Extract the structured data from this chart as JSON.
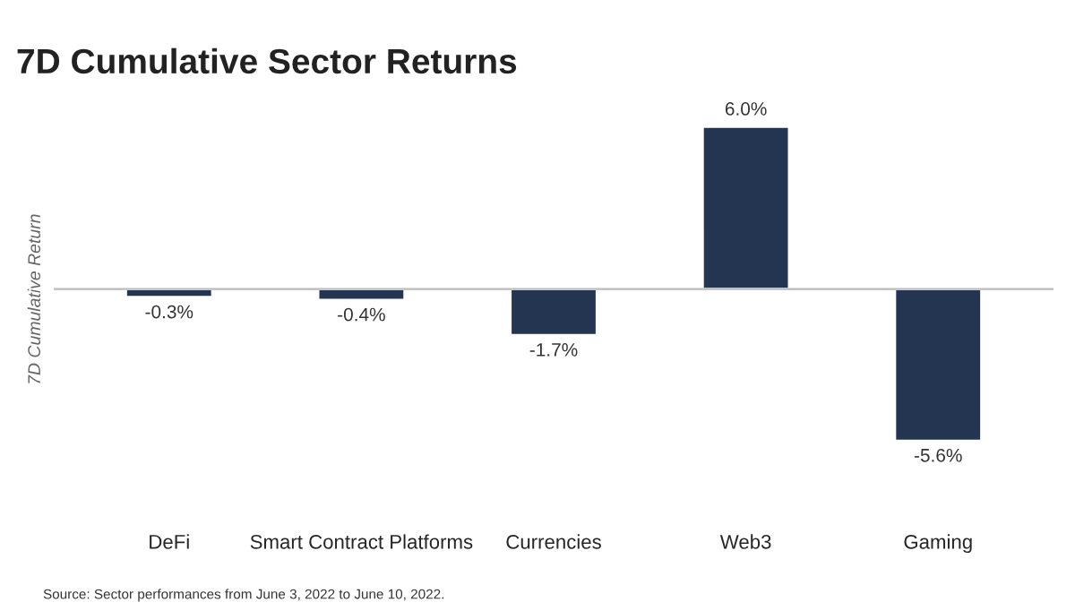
{
  "chart_data": {
    "type": "bar",
    "title": "7D Cumulative Sector Returns",
    "ylabel": "7D Cumulative Return",
    "categories": [
      "DeFi",
      "Smart Contract Platforms",
      "Currencies",
      "Web3",
      "Gaming"
    ],
    "values": [
      -0.3,
      -0.4,
      -1.7,
      6.0,
      -5.6
    ],
    "value_labels": [
      "-0.3%",
      "-0.4%",
      "-1.7%",
      "6.0%",
      "-5.6%"
    ],
    "color": "#233550",
    "tick_labels": "x",
    "grid": false,
    "legend": false,
    "annotations": [
      "Source: Sector performances from June 3, 2022 to June 10, 2022."
    ]
  }
}
